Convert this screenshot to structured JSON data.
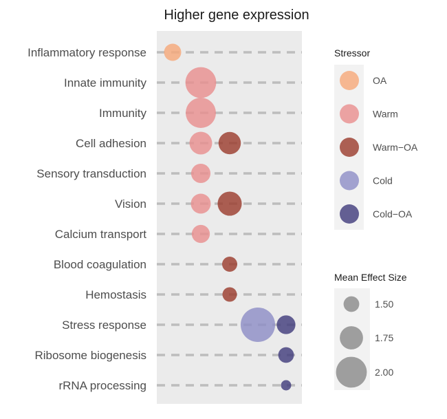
{
  "chart_data": {
    "type": "scatter",
    "title": "Higher gene expression",
    "xlabel": "",
    "ylabel": "",
    "categories": [
      "Inflammatory response",
      "Innate immunity",
      "Immunity",
      "Cell adhesion",
      "Sensory transduction",
      "Vision",
      "Calcium transport",
      "Blood coagulation",
      "Hemostasis",
      "Stress response",
      "Ribosome biogenesis",
      "rRNA processing"
    ],
    "stressor_order": [
      "OA",
      "Warm",
      "Warm−OA",
      "Cold",
      "Cold−OA"
    ],
    "colors": {
      "OA": "#f6a778",
      "Warm": "#e98d8d",
      "Warm−OA": "#9a3a2b",
      "Cold": "#8c8cc6",
      "Cold−OA": "#3e3a7a"
    },
    "point_alpha": 0.8,
    "points": [
      {
        "category": "Inflammatory response",
        "stressor": "OA",
        "effect": 1.55
      },
      {
        "category": "Innate immunity",
        "stressor": "Warm",
        "effect": 2.0
      },
      {
        "category": "Immunity",
        "stressor": "Warm",
        "effect": 1.98
      },
      {
        "category": "Cell adhesion",
        "stressor": "Warm",
        "effect": 1.73
      },
      {
        "category": "Cell adhesion",
        "stressor": "Warm−OA",
        "effect": 1.72
      },
      {
        "category": "Sensory transduction",
        "stressor": "Warm",
        "effect": 1.62
      },
      {
        "category": "Vision",
        "stressor": "Warm",
        "effect": 1.64
      },
      {
        "category": "Vision",
        "stressor": "Warm−OA",
        "effect": 1.78
      },
      {
        "category": "Calcium transport",
        "stressor": "Warm",
        "effect": 1.58
      },
      {
        "category": "Blood coagulation",
        "stressor": "Warm−OA",
        "effect": 1.48
      },
      {
        "category": "Hemostasis",
        "stressor": "Warm−OA",
        "effect": 1.46
      },
      {
        "category": "Stress response",
        "stressor": "Cold",
        "effect": 2.12
      },
      {
        "category": "Stress response",
        "stressor": "Cold−OA",
        "effect": 1.6
      },
      {
        "category": "Ribosome biogenesis",
        "stressor": "Cold−OA",
        "effect": 1.5
      },
      {
        "category": "rRNA processing",
        "stressor": "Cold−OA",
        "effect": 1.32
      }
    ],
    "legend_stressor": {
      "title": "Stressor",
      "entries": [
        "OA",
        "Warm",
        "Warm−OA",
        "Cold",
        "Cold−OA"
      ]
    },
    "legend_size": {
      "title": "Mean Effect Size",
      "entries": [
        {
          "label": "1.50",
          "value": 1.5
        },
        {
          "label": "1.75",
          "value": 1.75
        },
        {
          "label": "2.00",
          "value": 2.0
        }
      ],
      "color": "#9e9e9e"
    },
    "panel_background": "#ebebeb",
    "guide_line_color": "#bdbdbd",
    "legend_position": "right",
    "grid": false
  }
}
